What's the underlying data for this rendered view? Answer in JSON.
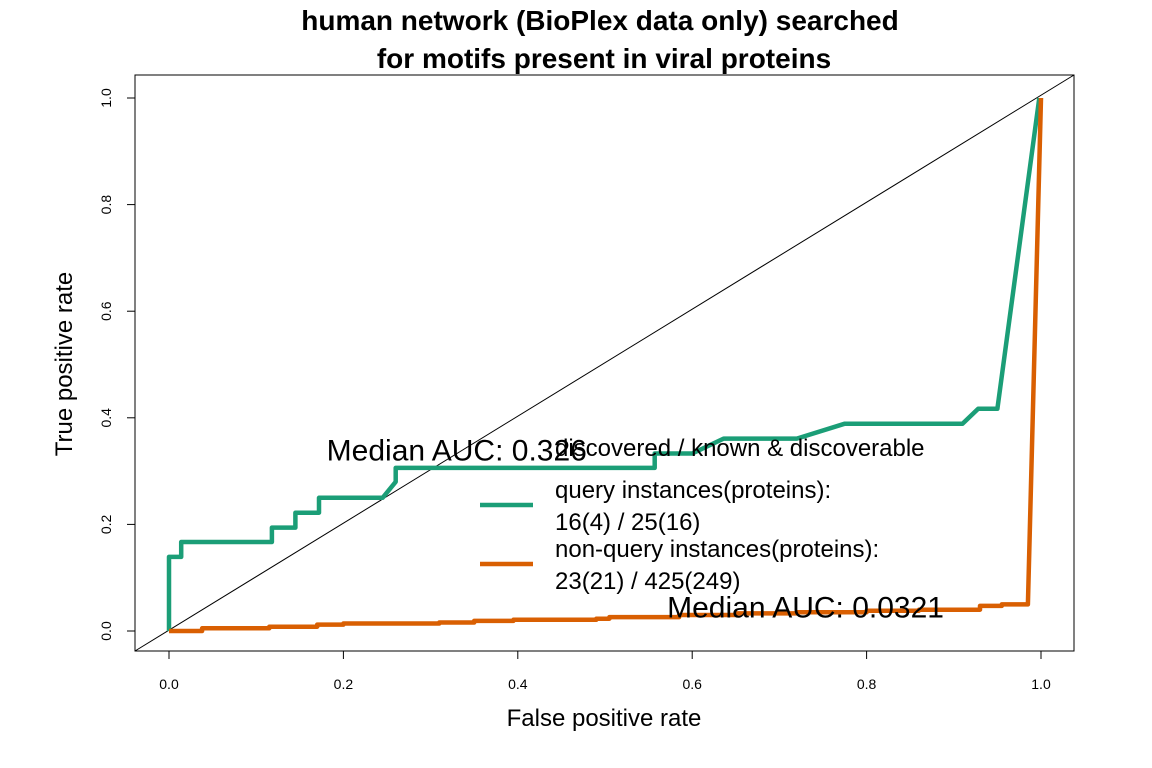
{
  "chart_data": {
    "type": "line",
    "title_line1": "human network (BioPlex data only) searched",
    "title_line2": "for motifs present in viral proteins",
    "xlabel": "False positive rate",
    "ylabel": "True positive rate",
    "xlim": [
      0,
      1
    ],
    "ylim": [
      0,
      1
    ],
    "x_ticks": [
      "0.0",
      "0.2",
      "0.4",
      "0.6",
      "0.8",
      "1.0"
    ],
    "y_ticks": [
      "0.0",
      "0.2",
      "0.4",
      "0.6",
      "0.8",
      "1.0"
    ],
    "grid": false,
    "legend_position": "center-right",
    "legend_title": "discovered / known & discoverable",
    "legend_entries": [
      {
        "line1": "query instances(proteins):",
        "line2": "16(4) / 25(16)",
        "color": "#1b9e77"
      },
      {
        "line1": "non-query instances(proteins):",
        "line2": "23(21) / 425(249)",
        "color": "#d95f02"
      }
    ],
    "annotations": [
      {
        "text": "Median AUC: 0.326",
        "x": 0.33,
        "y": 0.32
      },
      {
        "text": "Median AUC: 0.0321",
        "x": 0.73,
        "y": 0.025
      }
    ],
    "diagonal": true,
    "series": [
      {
        "color": "#1b9e77",
        "points": [
          [
            0.0,
            0.0
          ],
          [
            0.0,
            0.139
          ],
          [
            0.014,
            0.139
          ],
          [
            0.014,
            0.167
          ],
          [
            0.118,
            0.167
          ],
          [
            0.118,
            0.194
          ],
          [
            0.145,
            0.194
          ],
          [
            0.145,
            0.222
          ],
          [
            0.172,
            0.222
          ],
          [
            0.172,
            0.25
          ],
          [
            0.245,
            0.25
          ],
          [
            0.26,
            0.28
          ],
          [
            0.26,
            0.306
          ],
          [
            0.557,
            0.306
          ],
          [
            0.557,
            0.333
          ],
          [
            0.6,
            0.333
          ],
          [
            0.636,
            0.361
          ],
          [
            0.72,
            0.361
          ],
          [
            0.775,
            0.389
          ],
          [
            0.91,
            0.389
          ],
          [
            0.928,
            0.417
          ],
          [
            0.95,
            0.417
          ],
          [
            0.998,
            1.0
          ]
        ]
      },
      {
        "color": "#d95f02",
        "points": [
          [
            0.0,
            0.0
          ],
          [
            0.038,
            0.0
          ],
          [
            0.038,
            0.005
          ],
          [
            0.115,
            0.005
          ],
          [
            0.115,
            0.008
          ],
          [
            0.17,
            0.008
          ],
          [
            0.17,
            0.012
          ],
          [
            0.2,
            0.012
          ],
          [
            0.2,
            0.014
          ],
          [
            0.31,
            0.014
          ],
          [
            0.31,
            0.016
          ],
          [
            0.35,
            0.016
          ],
          [
            0.35,
            0.019
          ],
          [
            0.395,
            0.019
          ],
          [
            0.395,
            0.021
          ],
          [
            0.49,
            0.021
          ],
          [
            0.49,
            0.023
          ],
          [
            0.505,
            0.023
          ],
          [
            0.505,
            0.026
          ],
          [
            0.585,
            0.026
          ],
          [
            0.585,
            0.03
          ],
          [
            0.65,
            0.03
          ],
          [
            0.65,
            0.033
          ],
          [
            0.72,
            0.033
          ],
          [
            0.72,
            0.035
          ],
          [
            0.8,
            0.035
          ],
          [
            0.8,
            0.038
          ],
          [
            0.86,
            0.038
          ],
          [
            0.86,
            0.04
          ],
          [
            0.93,
            0.04
          ],
          [
            0.93,
            0.047
          ],
          [
            0.955,
            0.047
          ],
          [
            0.955,
            0.05
          ],
          [
            0.985,
            0.05
          ],
          [
            1.0,
            1.0
          ]
        ]
      }
    ]
  }
}
